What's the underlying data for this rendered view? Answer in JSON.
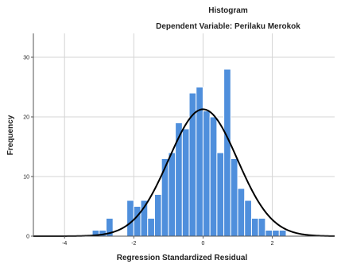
{
  "chart_data": {
    "type": "bar",
    "title": "Histogram",
    "subtitle": "Dependent Variable: Perilaku Merokok",
    "xlabel": "Regression Standardized Residual",
    "ylabel": "Frequency",
    "x_ticks": [
      -4,
      -2,
      0,
      2
    ],
    "y_ticks": [
      0,
      10,
      20,
      30
    ],
    "xlim": [
      -4.9,
      3.8
    ],
    "ylim": [
      0,
      34
    ],
    "bin_width": 0.2,
    "bin_starts": [
      -3.2,
      -3.0,
      -2.8,
      -2.6,
      -2.4,
      -2.2,
      -2.0,
      -1.8,
      -1.6,
      -1.4,
      -1.2,
      -1.0,
      -0.8,
      -0.6,
      -0.4,
      -0.2,
      0.0,
      0.2,
      0.4,
      0.6,
      0.8,
      1.0,
      1.2,
      1.4,
      1.6,
      1.8,
      2.0,
      2.2
    ],
    "values": [
      1,
      1,
      3,
      0,
      0,
      6,
      5,
      6,
      3,
      7,
      13,
      14,
      19,
      18,
      24,
      25,
      21,
      20,
      14,
      28,
      13,
      8,
      6,
      3,
      3,
      1,
      1,
      1
    ],
    "normal_curve": {
      "mean": 0.0,
      "sd": 0.99,
      "n": 264,
      "shown": true
    },
    "grid": true,
    "colors": {
      "bar": "#4f8fdc",
      "bar_edge": "#ffffff",
      "curve": "#000000",
      "grid": "#d4d4d4",
      "axis": "#555555"
    }
  }
}
